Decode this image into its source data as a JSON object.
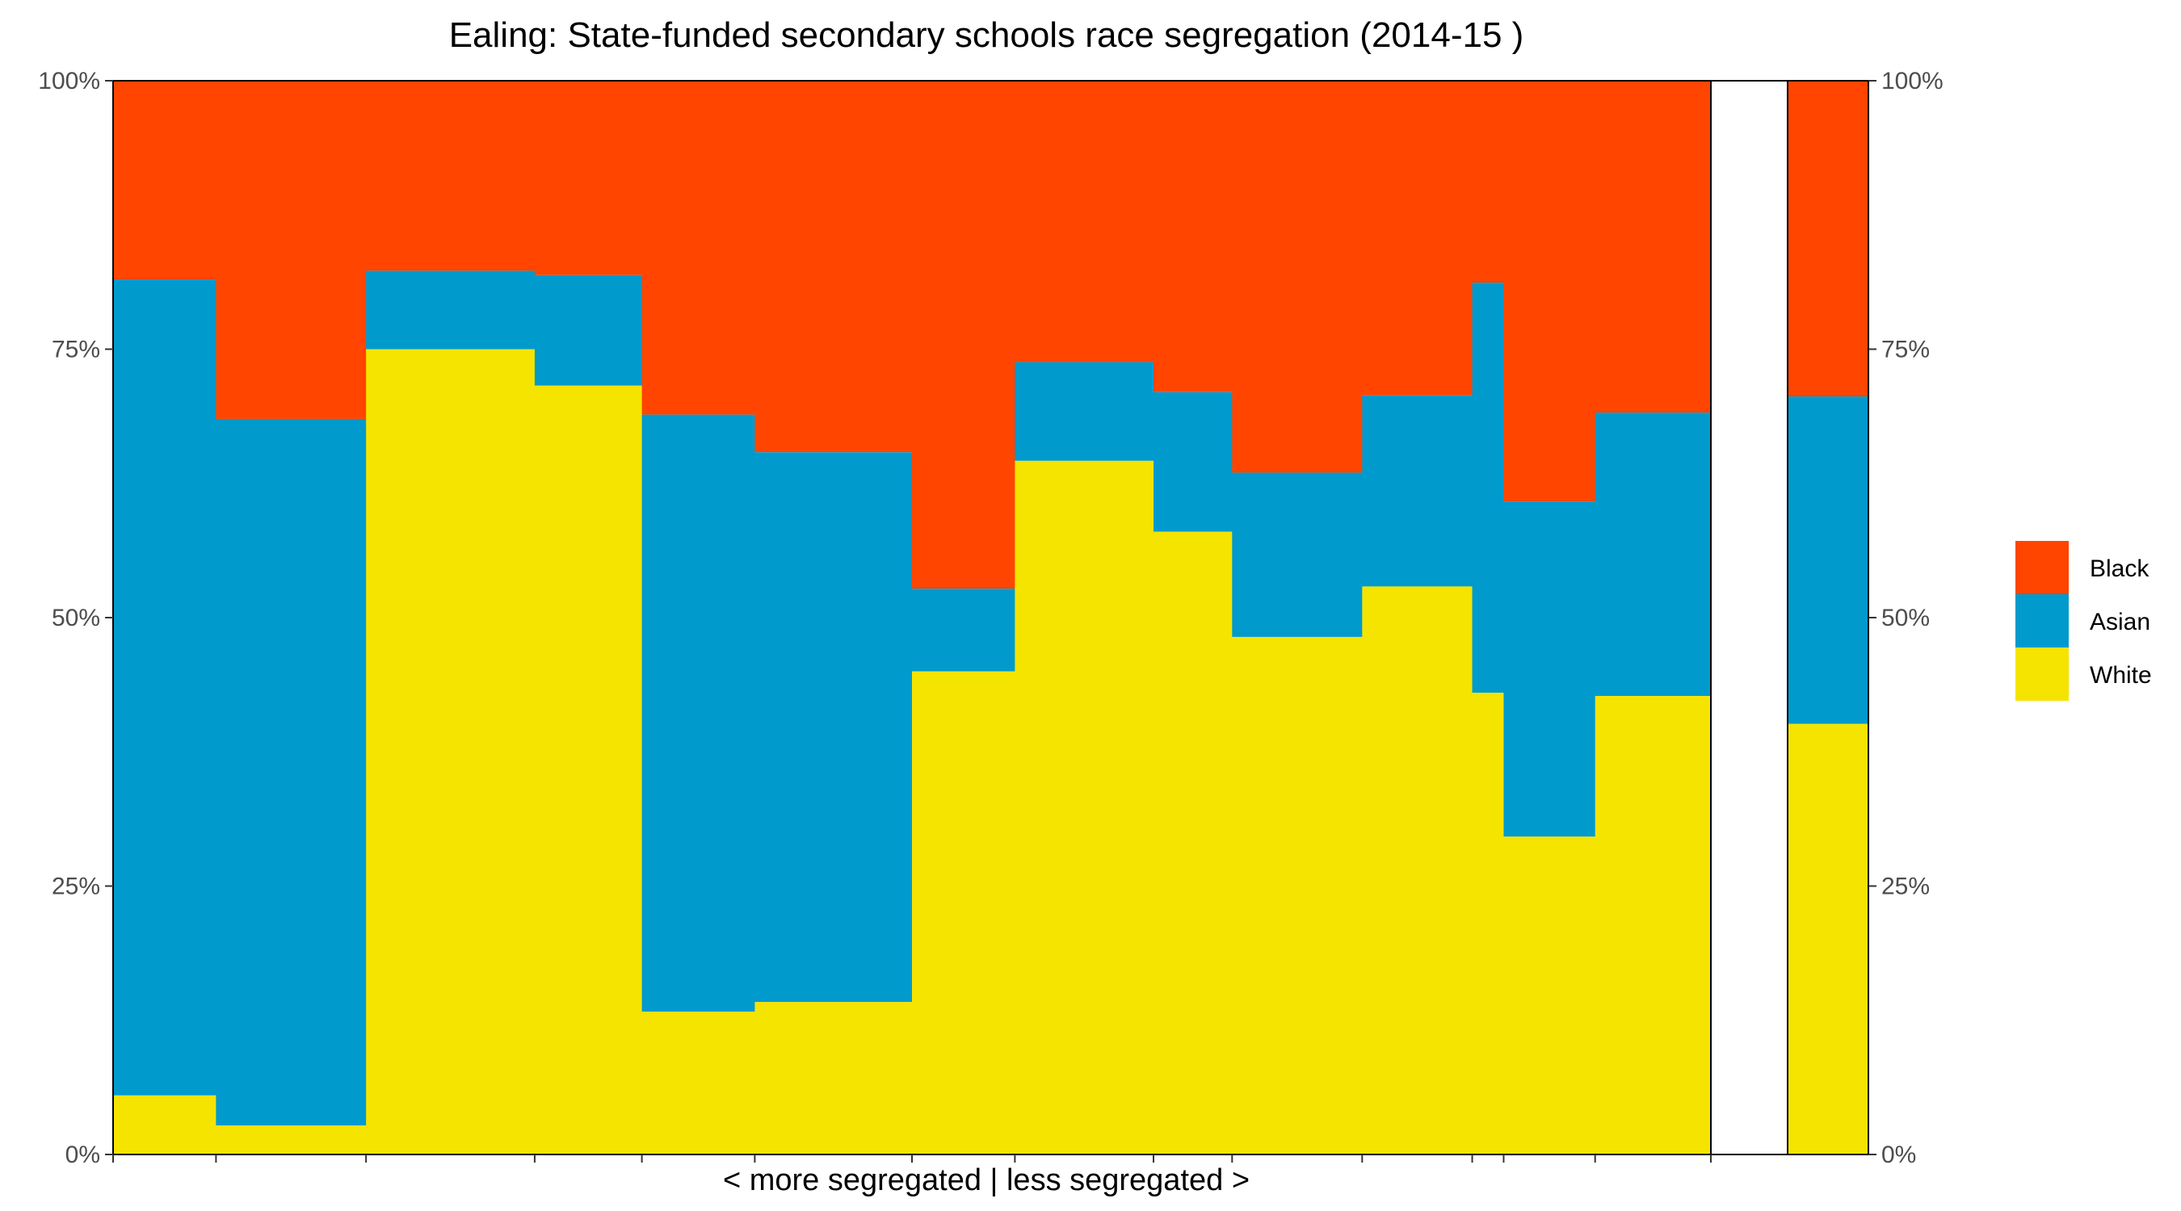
{
  "chart_data": {
    "type": "bar",
    "title": "Ealing: State-funded secondary schools race segregation (2014-15 )",
    "xlabel": "< more segregated | less segregated >",
    "ylabel": "",
    "ylim": [
      0,
      100
    ],
    "y_ticks": [
      "0%",
      "25%",
      "50%",
      "75%",
      "100%"
    ],
    "stacking": "stacked-to-100-percent, variable bar width",
    "legend": {
      "placement": "right",
      "items": [
        {
          "name": "Black",
          "color": "#FF4500"
        },
        {
          "name": "Asian",
          "color": "#009ACD"
        },
        {
          "name": "White",
          "color": "#F5E400"
        }
      ]
    },
    "schools": [
      {
        "width": 0.72,
        "white": 5.5,
        "asian_top": 81.5
      },
      {
        "width": 1.05,
        "white": 2.7,
        "asian_top": 68.5
      },
      {
        "width": 1.18,
        "white": 75.0,
        "asian_top": 82.3
      },
      {
        "width": 0.75,
        "white": 71.6,
        "asian_top": 81.9
      },
      {
        "width": 0.79,
        "white": 13.3,
        "asian_top": 68.9
      },
      {
        "width": 1.1,
        "white": 14.2,
        "asian_top": 65.4
      },
      {
        "width": 0.72,
        "white": 45.0,
        "asian_top": 52.7
      },
      {
        "width": 0.97,
        "white": 64.6,
        "asian_top": 73.8
      },
      {
        "width": 0.55,
        "white": 58.0,
        "asian_top": 71.0
      },
      {
        "width": 0.91,
        "white": 48.2,
        "asian_top": 63.5
      },
      {
        "width": 0.77,
        "white": 52.9,
        "asian_top": 70.7
      },
      {
        "width": 0.22,
        "white": 43.0,
        "asian_top": 81.2
      },
      {
        "width": 0.64,
        "white": 29.6,
        "asian_top": 60.8
      },
      {
        "width": 0.81,
        "white": 42.7,
        "asian_top": 69.1
      }
    ],
    "total": {
      "white": 40.1,
      "asian_top": 70.6
    }
  }
}
